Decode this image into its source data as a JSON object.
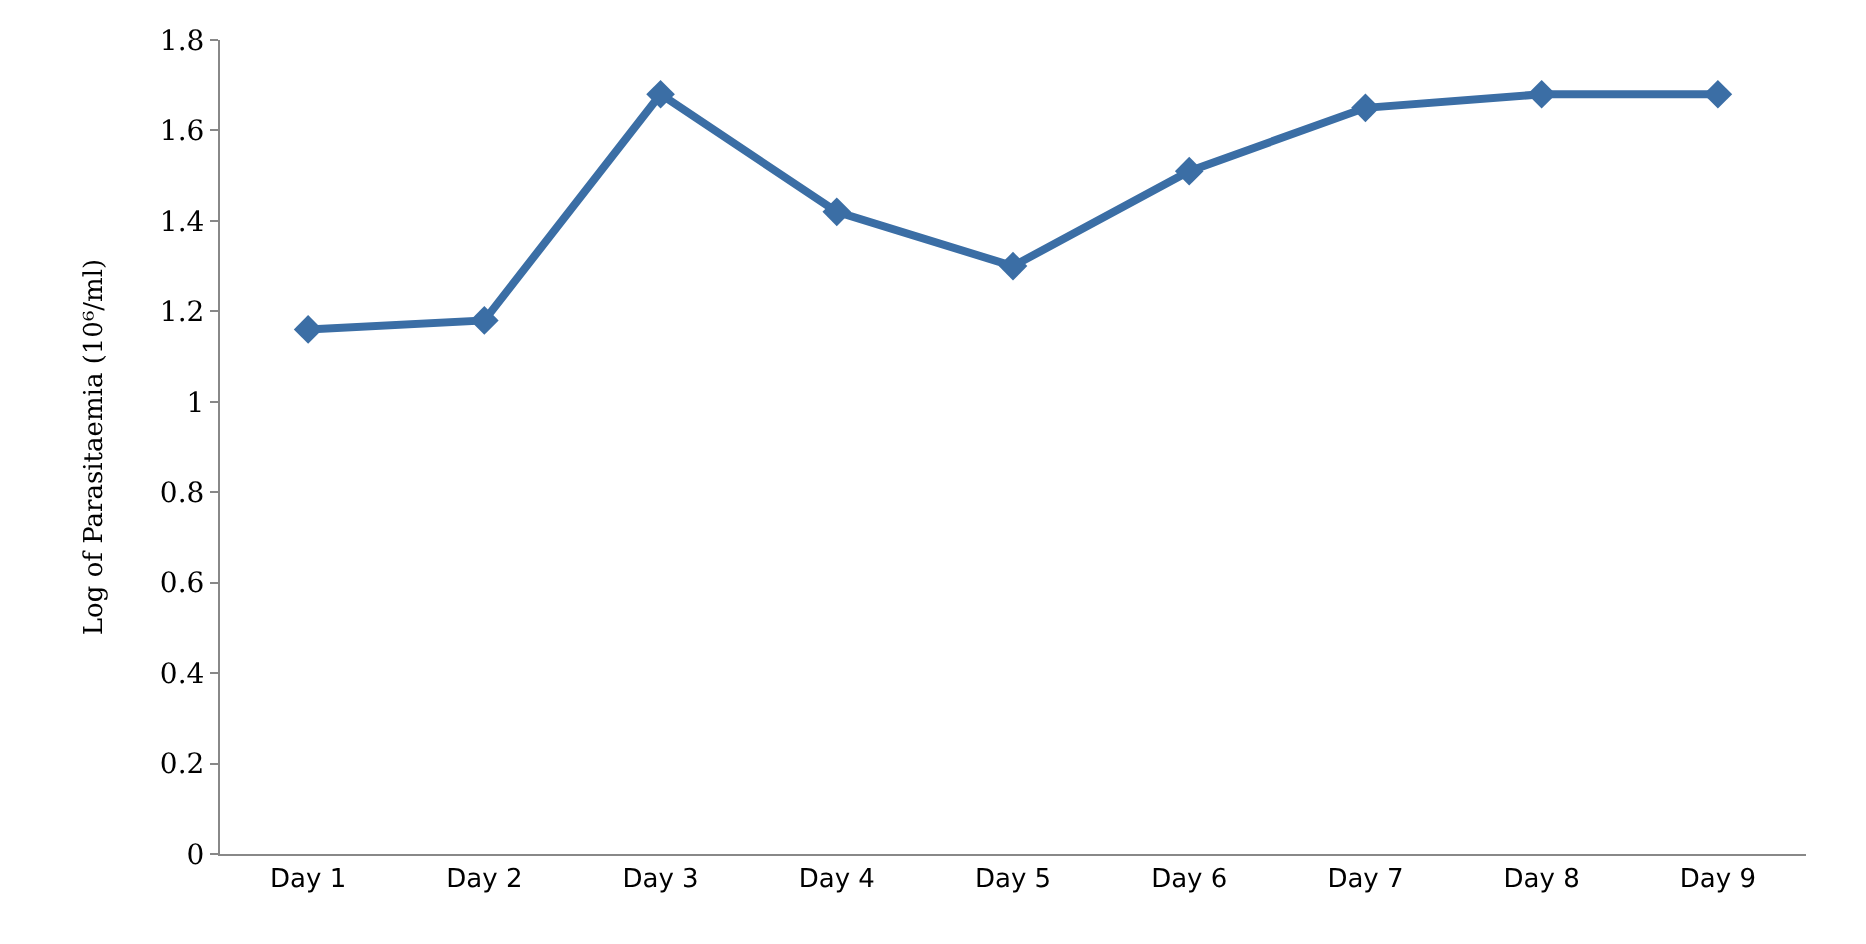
{
  "chart_data": {
    "type": "line",
    "ylabel": "Log of Parasitaemia (10⁶/ml)",
    "categories": [
      "Day 1",
      "Day 2",
      "Day 3",
      "Day 4",
      "Day 5",
      "Day 6",
      "Day 7",
      "Day 8",
      "Day 9"
    ],
    "series": [
      {
        "color": "#3b6ea5",
        "values": [
          1.16,
          1.18,
          1.68,
          1.42,
          1.3,
          1.51,
          1.65,
          1.68,
          1.68
        ]
      }
    ],
    "ylim": [
      0,
      1.8
    ],
    "yticks": [
      0,
      0.2,
      0.4,
      0.6,
      0.8,
      1,
      1.2,
      1.4,
      1.6,
      1.8
    ],
    "legend": false,
    "marker": "diamond",
    "line_style": "solid"
  }
}
